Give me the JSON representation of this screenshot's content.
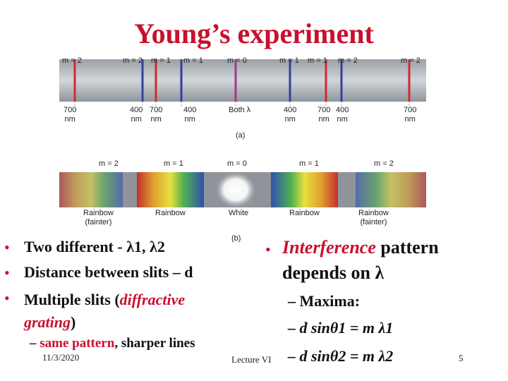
{
  "title": "Young’s experiment",
  "figure": {
    "a_orders": [
      "m = 2",
      "m = 2",
      "m = 1",
      "m = 1",
      "m = 0",
      "m = 1",
      "m = 1",
      "m = 2",
      "m = 2"
    ],
    "a_wavelengths": [
      "700\nnm",
      "400\nnm",
      "700\nnm",
      "400\nnm",
      "Both λ",
      "400\nnm",
      "700\nnm",
      "400\nnm",
      "700\nnm"
    ],
    "a_label": "(a)",
    "b_orders": [
      "m = 2",
      "m = 1",
      "m = 0",
      "m = 1",
      "m = 2"
    ],
    "b_labels": [
      "Rainbow\n(fainter)",
      "Rainbow",
      "White",
      "Rainbow",
      "Rainbow\n(fainter)"
    ],
    "b_label": "(b)"
  },
  "left_bullets": {
    "b1": "Two different - λ1, λ2",
    "b2": "Distance between slits – d",
    "b3_pre": "Multiple slits (",
    "b3_em": "diffractive",
    "b3_em2": "grating",
    "b3_post": ")",
    "sub_pre": "– ",
    "sub_em": "same pattern",
    "sub_post": ", sharper lines"
  },
  "right_bullets": {
    "b1_em": "Interference",
    "b1_rest": " pattern",
    "b1_line2": "depends on λ",
    "s1": "– Maxima:",
    "s2": "– d sinθ1 = m λ1",
    "s3": "– d sinθ2 = m λ2"
  },
  "footer": {
    "date": "11/3/2020",
    "lecture": "Lecture VI",
    "page": "5"
  },
  "colors": {
    "title": "#c8102e",
    "red_line": "#d22a2a",
    "blue_line": "#3340a0"
  }
}
